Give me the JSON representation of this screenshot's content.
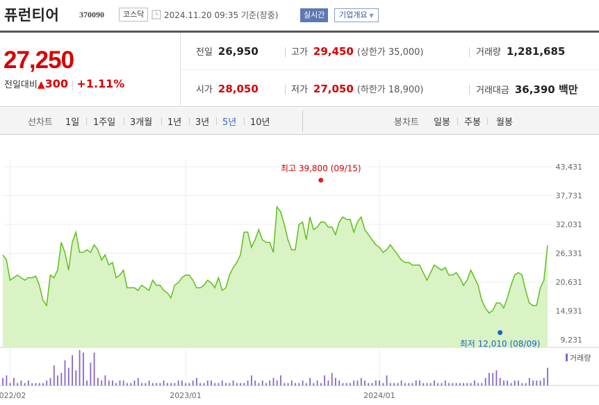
{
  "header": {
    "name": "퓨런티어",
    "code": "370090",
    "market": "코스닥",
    "datetime": "2024.11.20 09:35  기준(장중)",
    "realtime_label": "실시간",
    "company_info_label": "기업개요"
  },
  "price": {
    "current": "27,250",
    "change_label": "전일대비",
    "change_amount": "300",
    "change_percent": "+1.11%"
  },
  "stats": {
    "prev_close_label": "전일",
    "prev_close": "26,950",
    "high_label": "고가",
    "high": "29,450",
    "upper_limit": "(상한가 35,000)",
    "volume_label": "거래량",
    "volume": "1,281,685",
    "open_label": "시가",
    "open": "28,050",
    "low_label": "저가",
    "low": "27,050",
    "lower_limit": "(하한가 18,900)",
    "amount_label": "거래대금",
    "amount": "36,390 백만"
  },
  "tabs": {
    "line_label": "선차트",
    "periods": [
      "1일",
      "1주일",
      "3개월",
      "1년",
      "3년",
      "5년",
      "10년"
    ],
    "selected_period": "5년",
    "candle_label": "봉차트",
    "candles": [
      "일봉",
      "주봉",
      "월봉"
    ]
  },
  "colors": {
    "up": "#d60000",
    "line": "#5dbf18",
    "area": "#d9f3c4",
    "volume": "#8566c8",
    "low_marker": "#1b63c9"
  },
  "chart_data": {
    "type": "area",
    "ylim": [
      9231,
      43431
    ],
    "y_ticks": [
      "43,431",
      "37,731",
      "32,031",
      "26,331",
      "20,631",
      "14,931",
      "9,231"
    ],
    "x_ticks": [
      "2022/02",
      "2023/01",
      "2024/01"
    ],
    "x_tick_weeks": [
      2,
      50,
      103
    ],
    "max_annotation": "최고 39,800 (09/15)",
    "min_annotation": "최저 12,010 (08/09)",
    "max_point": {
      "week": 87,
      "value": 39800
    },
    "min_point": {
      "week": 136,
      "value": 12010
    },
    "volume_legend": "거래량",
    "series": [
      {
        "values": [
          26000,
          25000,
          21000,
          21500,
          22000,
          21500,
          21000,
          21500,
          21500,
          21800,
          20000,
          17000,
          16000,
          22000,
          21500,
          23000,
          28500,
          26500,
          23000,
          28500,
          30500,
          26500,
          26500,
          27000,
          26500,
          28000,
          27000,
          25000,
          26000,
          24000,
          24500,
          21500,
          22000,
          23000,
          19500,
          19500,
          19500,
          19000,
          20000,
          19500,
          19000,
          21000,
          20000,
          20000,
          19000,
          18500,
          17500,
          20000,
          20500,
          21500,
          22000,
          22000,
          21000,
          19500,
          19500,
          20000,
          21000,
          20500,
          19500,
          21500,
          19000,
          19500,
          22000,
          23500,
          24500,
          26000,
          30500,
          30500,
          27500,
          29000,
          31000,
          29000,
          28500,
          28500,
          26500,
          35500,
          34500,
          32000,
          29000,
          27000,
          27000,
          32000,
          32500,
          29000,
          33500,
          31000,
          31500,
          32500,
          32500,
          31500,
          31500,
          30000,
          32500,
          33500,
          33000,
          33000,
          30500,
          32500,
          33500,
          31000,
          30000,
          29000,
          28000,
          27500,
          26500,
          27000,
          28000,
          27000,
          26000,
          25000,
          24500,
          24500,
          24000,
          24000,
          24000,
          22500,
          21000,
          22500,
          24000,
          23500,
          23000,
          23500,
          22000,
          22000,
          22500,
          21500,
          20000,
          21000,
          23000,
          21500,
          20000,
          17000,
          15500,
          14500,
          15000,
          16500,
          16500,
          15500,
          17500,
          20000,
          22000,
          22500,
          22000,
          19000,
          16500,
          16000,
          16000,
          19500,
          21000,
          27900
        ],
        "volume": [
          3,
          4,
          1,
          3,
          1,
          2,
          1,
          2,
          1,
          1,
          1,
          1,
          2,
          3,
          8,
          4,
          5,
          10,
          7,
          12,
          6,
          14,
          13,
          2,
          9,
          13,
          3,
          2,
          4,
          2,
          2,
          1,
          2,
          2,
          1,
          1,
          2,
          3,
          1,
          1,
          2,
          1,
          1,
          1,
          2,
          1,
          1,
          1,
          2,
          2,
          1,
          1,
          2,
          3,
          1,
          1,
          2,
          2,
          1,
          1,
          2,
          1,
          1,
          2,
          1,
          1,
          1,
          2,
          4,
          2,
          1,
          2,
          1,
          2,
          3,
          2,
          4,
          1,
          1,
          2,
          1,
          1,
          2,
          1,
          3,
          1,
          2,
          1,
          4,
          2,
          5,
          3,
          2,
          1,
          1,
          1,
          2,
          2,
          3,
          2,
          1,
          1,
          2,
          2,
          1,
          4,
          1,
          1,
          1,
          2,
          1,
          1,
          1,
          2,
          2,
          1,
          1,
          1,
          2,
          1,
          1,
          2,
          1,
          1,
          1,
          1,
          1,
          1,
          1,
          2,
          1,
          1,
          3,
          5,
          5,
          6,
          3,
          2,
          2,
          1,
          2,
          2,
          1,
          1,
          3,
          2,
          2,
          2,
          3,
          7
        ]
      }
    ]
  }
}
